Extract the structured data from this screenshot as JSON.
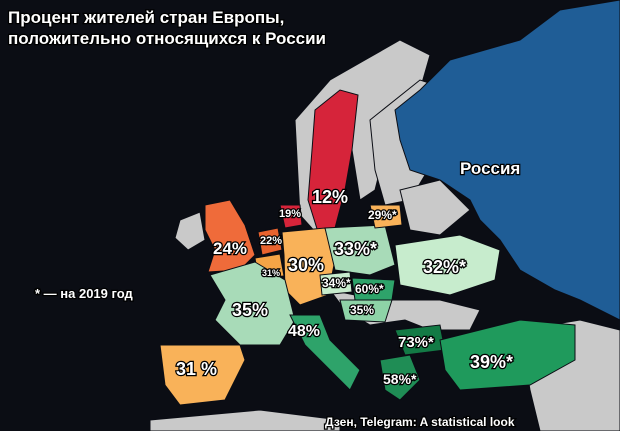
{
  "title": [
    "Процент жителей стран Европы,",
    "положительно относящихся к России"
  ],
  "note": "* — на 2019 год",
  "source": "Дзен, Telegram: A statistical look",
  "russia": "Россия",
  "labels": [
    "12%",
    "19%",
    "29%*",
    "24%",
    "22%",
    "31%",
    "30%",
    "33%*",
    "32%*",
    "34%*",
    "60%*",
    "35%",
    "35%",
    "48%",
    "73%*",
    "31 %",
    "39%*",
    "58%*"
  ]
}
